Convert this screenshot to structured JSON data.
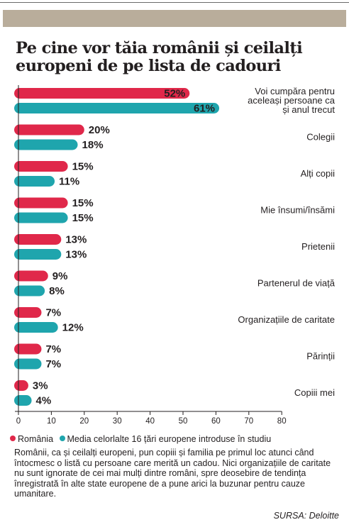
{
  "title": "Pe cine vor tăia românii și ceilalți europeni de pe lista de cadouri",
  "chart_data": {
    "type": "bar",
    "orientation": "horizontal",
    "categories": [
      [
        "Voi cumpăra pentru",
        "aceleași persoane ca",
        "și anul trecut"
      ],
      [
        "Colegii"
      ],
      [
        "Alți copii"
      ],
      [
        "Mie însumi/însămi"
      ],
      [
        "Prietenii"
      ],
      [
        "Partenerul de viață"
      ],
      [
        "Organizațiile de caritate"
      ],
      [
        "Părinții"
      ],
      [
        "Copiii mei"
      ]
    ],
    "series": [
      {
        "name": "România",
        "color": "#e0284a",
        "values": [
          52,
          20,
          15,
          15,
          13,
          9,
          7,
          7,
          3
        ]
      },
      {
        "name": "Media celorlalte 16 țări europene introduse în studiu",
        "color": "#1fa5ad",
        "values": [
          61,
          18,
          11,
          15,
          13,
          8,
          12,
          7,
          4
        ]
      }
    ],
    "value_suffix": "%",
    "xlim": [
      0,
      80
    ],
    "xticks": [
      0,
      10,
      20,
      30,
      40,
      50,
      60,
      70,
      80
    ],
    "grid": false,
    "legend_position": "bottom"
  },
  "legend": [
    {
      "label": "România",
      "color": "#e0284a"
    },
    {
      "label": "Media celorlalte 16 țări europene introduse în studiu",
      "color": "#1fa5ad"
    }
  ],
  "caption": "Românii, ca și ceilalți europeni, pun copiii și familia pe primul loc atunci când întocmesc o listă cu persoane care merită un cadou. Nici organizațiile de caritate nu sunt ignorate de cei mai mulți dintre români, spre deosebire de tendința înregistrată în alte state europene de a pune arici la buzunar pentru cauze umanitare.",
  "source": "SURSA: Deloitte"
}
